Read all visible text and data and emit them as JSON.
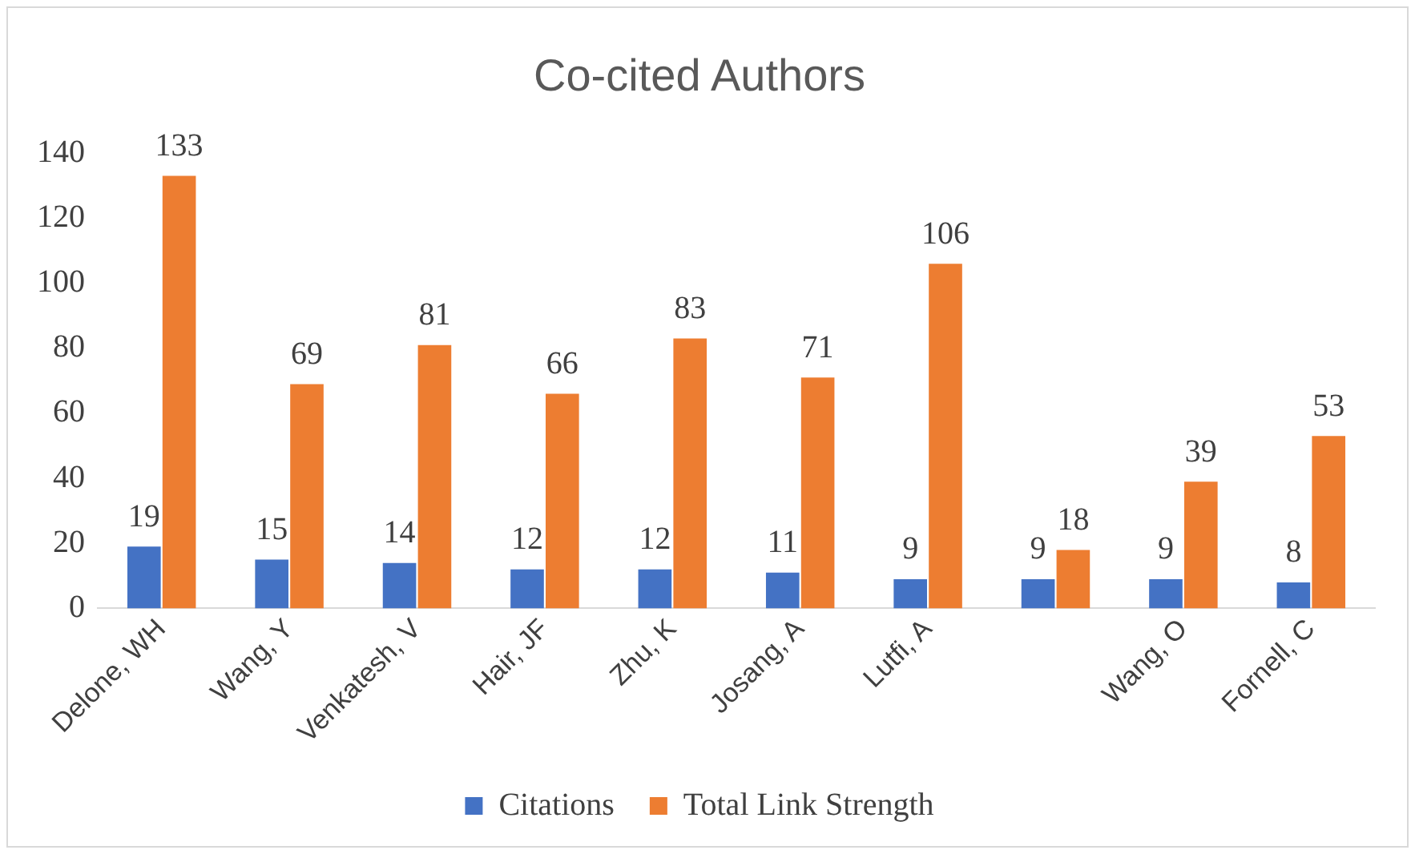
{
  "chart_data": {
    "type": "bar",
    "title": "Co-cited Authors",
    "categories": [
      "Delone, WH",
      "Wang, Y",
      "Venkatesh, V",
      "Hair, JF",
      "Zhu, K",
      "Josang, A",
      "Lutfi, A",
      null,
      "Wang, O",
      "Fornell, C"
    ],
    "series": [
      {
        "name": "Citations",
        "color": "#4472c4",
        "values": [
          19,
          15,
          14,
          12,
          12,
          11,
          9,
          9,
          9,
          8
        ]
      },
      {
        "name": "Total Link Strength",
        "color": "#ed7d31",
        "values": [
          133,
          69,
          81,
          66,
          83,
          71,
          106,
          18,
          39,
          53
        ]
      }
    ],
    "ylim": [
      0,
      140
    ],
    "yticks": [
      0,
      20,
      40,
      60,
      80,
      100,
      120,
      140
    ],
    "grid": false,
    "legend": "bottom",
    "data_labels": true
  }
}
